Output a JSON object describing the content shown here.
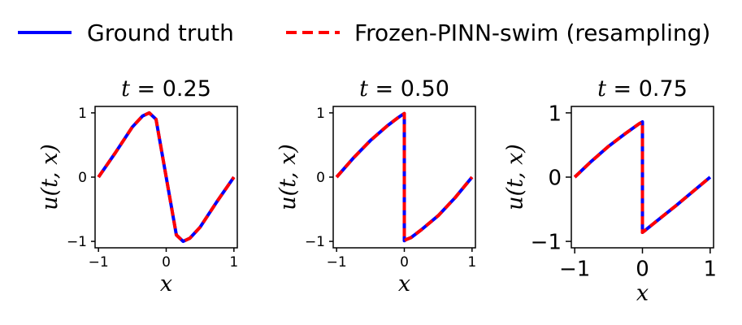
{
  "legend": {
    "entries": [
      {
        "label": "Ground truth",
        "color": "#0000ff",
        "style": "solid"
      },
      {
        "label": "Frozen-PINN-swim (resampling)",
        "color": "#ff0000",
        "style": "dashed"
      }
    ]
  },
  "chart_data": [
    {
      "type": "line",
      "title": "t = 0.25",
      "title_var": "t",
      "title_rest": " = 0.25",
      "xlabel": "x",
      "ylabel": "u(t, x)",
      "xlim": [
        -1.05,
        1.05
      ],
      "ylim": [
        -1.1,
        1.1
      ],
      "xticks": [
        -1,
        0,
        1
      ],
      "yticks": [
        -1,
        0,
        1
      ],
      "xtick_labels": [
        "−1",
        "0",
        "1"
      ],
      "ytick_labels": [
        "−1",
        "0",
        "1"
      ],
      "grid": false,
      "series": [
        {
          "name": "Ground truth",
          "x": [
            -1.0,
            -0.75,
            -0.5,
            -0.35,
            -0.25,
            -0.15,
            0.0,
            0.15,
            0.25,
            0.35,
            0.5,
            0.75,
            1.0
          ],
          "y": [
            0.0,
            0.38,
            0.78,
            0.95,
            1.0,
            0.9,
            0.0,
            -0.9,
            -1.0,
            -0.95,
            -0.78,
            -0.38,
            0.0
          ]
        },
        {
          "name": "Frozen-PINN-swim (resampling)",
          "x": [
            -1.0,
            -0.75,
            -0.5,
            -0.35,
            -0.25,
            -0.15,
            0.0,
            0.15,
            0.25,
            0.35,
            0.5,
            0.75,
            1.0
          ],
          "y": [
            0.0,
            0.38,
            0.78,
            0.95,
            1.0,
            0.9,
            0.0,
            -0.9,
            -1.0,
            -0.95,
            -0.78,
            -0.38,
            0.0
          ]
        }
      ]
    },
    {
      "type": "line",
      "title": "t = 0.50",
      "title_var": "t",
      "title_rest": " = 0.50",
      "xlabel": "x",
      "ylabel": "u(t, x)",
      "xlim": [
        -1.05,
        1.05
      ],
      "ylim": [
        -1.1,
        1.1
      ],
      "xticks": [
        -1,
        0,
        1
      ],
      "yticks": [
        -1,
        0,
        1
      ],
      "xtick_labels": [
        "−1",
        "0",
        "1"
      ],
      "ytick_labels": [
        "−1",
        "0",
        "1"
      ],
      "grid": false,
      "series": [
        {
          "name": "Ground truth",
          "x": [
            -1.0,
            -0.75,
            -0.5,
            -0.25,
            -0.1,
            -0.03,
            0.0,
            0.0,
            0.03,
            0.1,
            0.25,
            0.5,
            0.75,
            1.0
          ],
          "y": [
            0.0,
            0.3,
            0.57,
            0.8,
            0.92,
            0.97,
            0.99,
            -0.99,
            -0.97,
            -0.94,
            -0.82,
            -0.6,
            -0.32,
            0.0
          ]
        },
        {
          "name": "Frozen-PINN-swim (resampling)",
          "x": [
            -1.0,
            -0.75,
            -0.5,
            -0.25,
            -0.1,
            -0.03,
            0.0,
            0.0,
            0.03,
            0.1,
            0.25,
            0.5,
            0.75,
            1.0
          ],
          "y": [
            0.0,
            0.3,
            0.57,
            0.8,
            0.92,
            0.97,
            0.99,
            -0.99,
            -0.97,
            -0.94,
            -0.82,
            -0.6,
            -0.32,
            0.0
          ]
        }
      ]
    },
    {
      "type": "line",
      "title": "t = 0.75",
      "title_var": "t",
      "title_rest": " = 0.75",
      "xlabel": "x",
      "ylabel": "u(t, x)",
      "xlim": [
        -1.05,
        1.05
      ],
      "ylim": [
        -1.1,
        1.1
      ],
      "xticks": [
        -1,
        0,
        1
      ],
      "yticks": [
        -1,
        0,
        1
      ],
      "xtick_labels": [
        "−1",
        "0",
        "1"
      ],
      "ytick_labels": [
        "−1",
        "0",
        "1"
      ],
      "grid": false,
      "series": [
        {
          "name": "Ground truth",
          "x": [
            -1.0,
            -0.75,
            -0.5,
            -0.25,
            -0.05,
            0.0,
            0.0,
            0.05,
            0.25,
            0.5,
            0.75,
            1.0
          ],
          "y": [
            0.0,
            0.25,
            0.48,
            0.68,
            0.83,
            0.86,
            -0.86,
            -0.82,
            -0.65,
            -0.44,
            -0.22,
            0.0
          ]
        },
        {
          "name": "Frozen-PINN-swim (resampling)",
          "x": [
            -1.0,
            -0.75,
            -0.5,
            -0.25,
            -0.05,
            0.0,
            0.0,
            0.05,
            0.25,
            0.5,
            0.75,
            1.0
          ],
          "y": [
            0.0,
            0.25,
            0.48,
            0.68,
            0.83,
            0.86,
            -0.86,
            -0.82,
            -0.65,
            -0.44,
            -0.22,
            0.0
          ]
        }
      ]
    }
  ]
}
